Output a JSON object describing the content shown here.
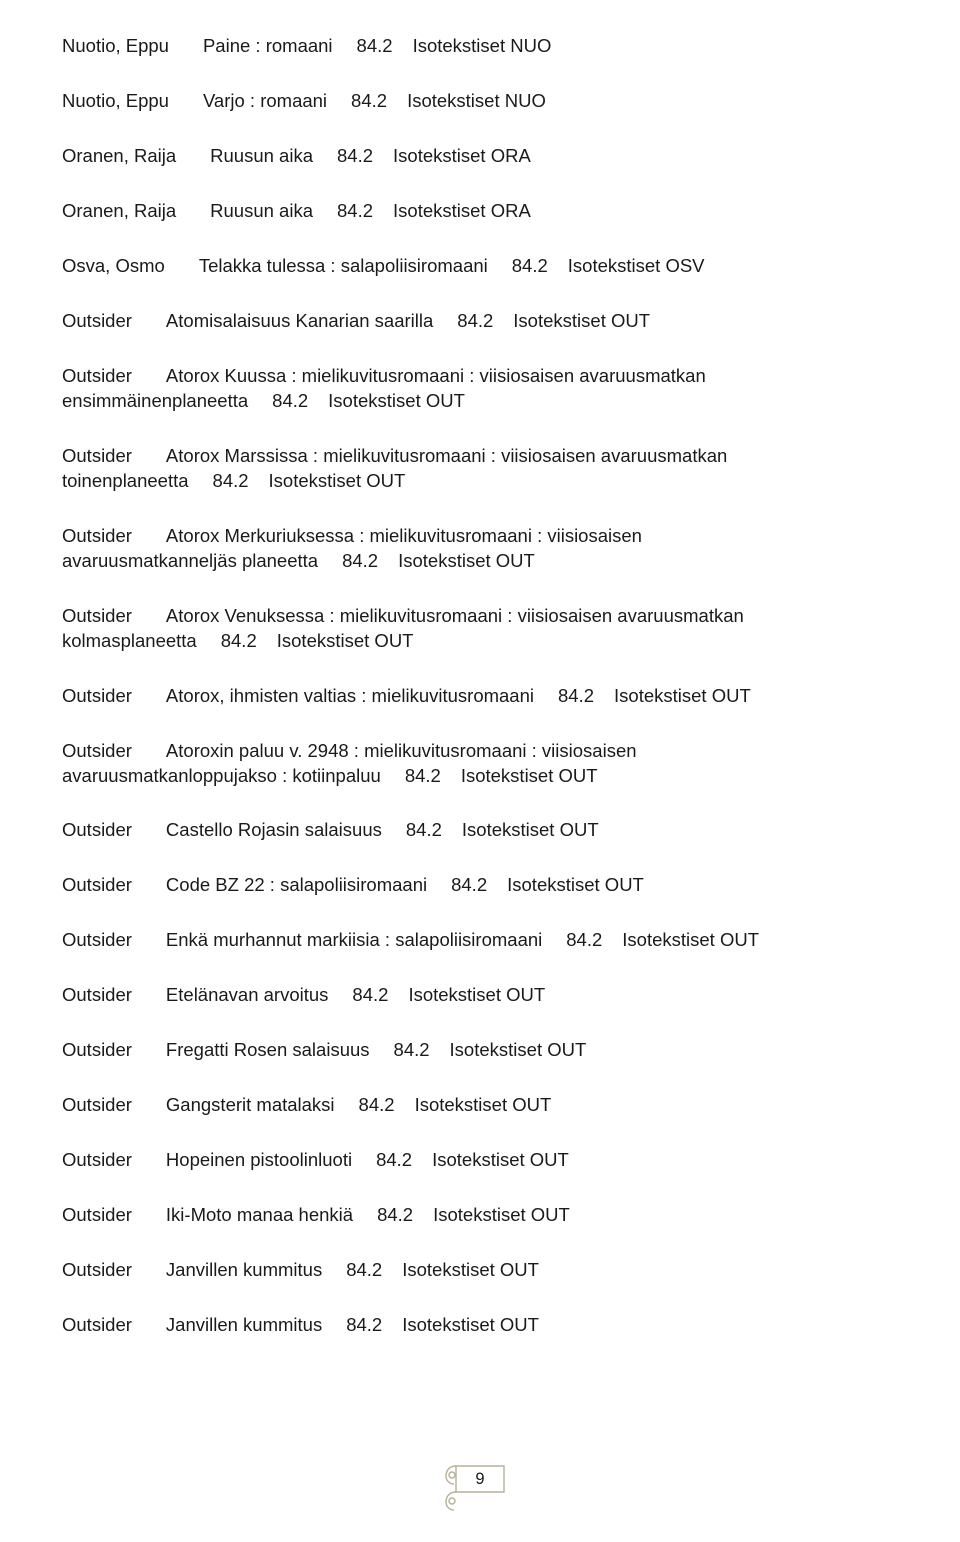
{
  "entries": [
    {
      "author": "Nuotio, Eppu",
      "title": "Paine : romaani",
      "class": "84.2",
      "series": "Isotekstiset NUO"
    },
    {
      "author": "Nuotio, Eppu",
      "title": "Varjo : romaani",
      "class": "84.2",
      "series": "Isotekstiset NUO"
    },
    {
      "author": "Oranen, Raija",
      "title": "Ruusun aika",
      "class": "84.2",
      "series": "Isotekstiset ORA"
    },
    {
      "author": "Oranen, Raija",
      "title": "Ruusun aika",
      "class": "84.2",
      "series": "Isotekstiset ORA"
    },
    {
      "author": "Osva, Osmo",
      "title": "Telakka tulessa : salapoliisiromaani",
      "class": "84.2",
      "series": "Isotekstiset OSV"
    },
    {
      "author": "Outsider",
      "title": "Atomisalaisuus Kanarian saarilla",
      "class": "84.2",
      "series": "Isotekstiset OUT"
    },
    {
      "author": "Outsider",
      "title_line1": "Atorox Kuussa : mielikuvitusromaani : viisiosaisen avaruusmatkan",
      "title_line2": "ensimmäinenplaneetta",
      "class": "84.2",
      "series": "Isotekstiset OUT",
      "wrap": true
    },
    {
      "author": "Outsider",
      "title_line1": "Atorox Marssissa : mielikuvitusromaani : viisiosaisen avaruusmatkan",
      "title_line2": "toinenplaneetta",
      "class": "84.2",
      "series": "Isotekstiset OUT",
      "wrap": true
    },
    {
      "author": "Outsider",
      "title_line1": "Atorox Merkuriuksessa : mielikuvitusromaani : viisiosaisen",
      "title_line2": "avaruusmatkanneljäs planeetta",
      "class": "84.2",
      "series": "Isotekstiset OUT",
      "wrap": true
    },
    {
      "author": "Outsider",
      "title_line1": "Atorox Venuksessa : mielikuvitusromaani : viisiosaisen avaruusmatkan",
      "title_line2": "kolmasplaneetta",
      "class": "84.2",
      "series": "Isotekstiset OUT",
      "wrap": true
    },
    {
      "author": "Outsider",
      "title": "Atorox, ihmisten valtias : mielikuvitusromaani",
      "class": "84.2",
      "series": "Isotekstiset OUT"
    },
    {
      "author": "Outsider",
      "title_line1": "Atoroxin paluu v. 2948 : mielikuvitusromaani : viisiosaisen",
      "title_line2": "avaruusmatkanloppujakso : kotiinpaluu",
      "class": "84.2",
      "series": "Isotekstiset OUT",
      "wrap": true
    },
    {
      "author": "Outsider",
      "title": "Castello Rojasin salaisuus",
      "class": "84.2",
      "series": "Isotekstiset OUT"
    },
    {
      "author": "Outsider",
      "title": "Code BZ 22 : salapoliisiromaani",
      "class": "84.2",
      "series": "Isotekstiset OUT"
    },
    {
      "author": "Outsider",
      "title": "Enkä murhannut markiisia : salapoliisiromaani",
      "class": "84.2",
      "series": "Isotekstiset OUT"
    },
    {
      "author": "Outsider",
      "title": "Etelänavan arvoitus",
      "class": "84.2",
      "series": "Isotekstiset OUT"
    },
    {
      "author": "Outsider",
      "title": "Fregatti Rosen salaisuus",
      "class": "84.2",
      "series": "Isotekstiset OUT"
    },
    {
      "author": "Outsider",
      "title": "Gangsterit matalaksi",
      "class": "84.2",
      "series": "Isotekstiset OUT"
    },
    {
      "author": "Outsider",
      "title": "Hopeinen pistoolinluoti",
      "class": "84.2",
      "series": "Isotekstiset OUT"
    },
    {
      "author": "Outsider",
      "title": "Iki-Moto manaa henkiä",
      "class": "84.2",
      "series": "Isotekstiset OUT"
    },
    {
      "author": "Outsider",
      "title": "Janvillen kummitus",
      "class": "84.2",
      "series": "Isotekstiset OUT"
    },
    {
      "author": "Outsider",
      "title": "Janvillen kummitus",
      "class": "84.2",
      "series": "Isotekstiset OUT"
    }
  ],
  "page_number": "9",
  "scroll_stroke": "#b7b097"
}
